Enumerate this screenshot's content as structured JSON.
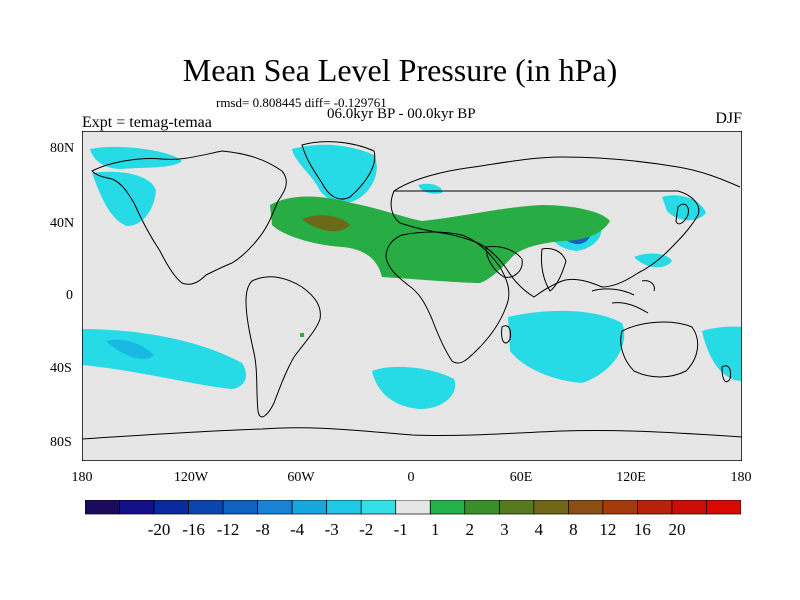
{
  "title": "Mean Sea Level Pressure (in hPa)",
  "stats_line": "rmsd= 0.808445 diff= -0.129761",
  "period": "06.0kyr BP - 00.0kyr BP",
  "experiment": "Expt = temag-temaa",
  "season": "DJF",
  "lat_labels": [
    "80N",
    "40N",
    "0",
    "40S",
    "80S"
  ],
  "lon_labels": [
    "180",
    "120W",
    "60W",
    "0",
    "60E",
    "120E",
    "180"
  ],
  "colorbar": {
    "labels": [
      "-20",
      "-16",
      "-12",
      "-8",
      "-4",
      "-3",
      "-2",
      "-1",
      "1",
      "2",
      "3",
      "4",
      "8",
      "12",
      "16",
      "20"
    ],
    "colors": [
      "#1a0b5c",
      "#120f88",
      "#0b2a9e",
      "#0b46b0",
      "#1061c2",
      "#1a82d2",
      "#18a6df",
      "#1ec8e6",
      "#34e0e6",
      "#e6e6e6",
      "#22b24a",
      "#3a8f2a",
      "#577a1f",
      "#6f6617",
      "#8a4f12",
      "#a43a0c",
      "#b8220a",
      "#c81008",
      "#d80a06"
    ]
  },
  "colors": {
    "ocean_background": "#e6e6e6",
    "coast": "#000000",
    "neg_light": "#27dbe6",
    "neg_mid": "#18b8e0",
    "neg_dark": "#1561c4",
    "pos_light": "#27ad43",
    "pos_mid": "#6b6a1b"
  }
}
